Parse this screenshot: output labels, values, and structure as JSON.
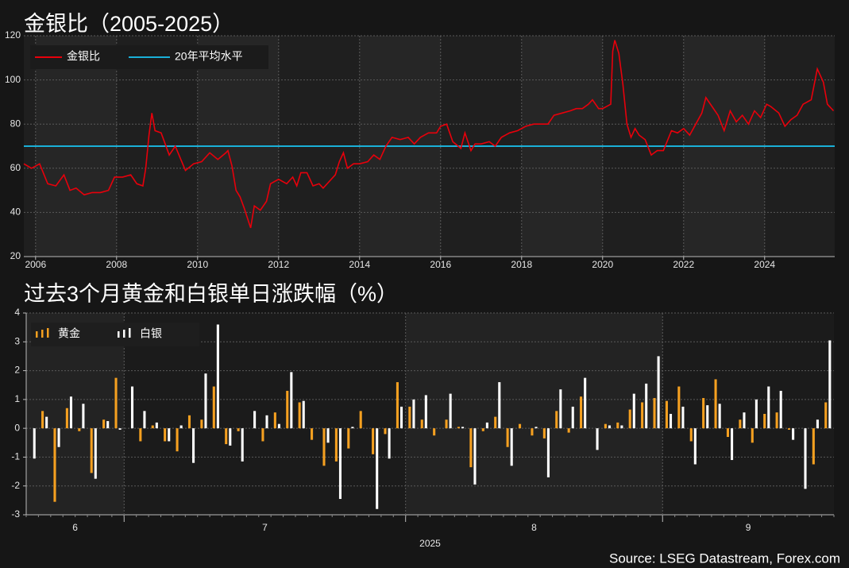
{
  "source": "Source: LSEG Datastream, Forex.com",
  "chart_data": [
    {
      "type": "line",
      "title": "金银比（2005-2025）",
      "x": [
        2005.71,
        2005.9,
        2006.1,
        2006.3,
        2006.5,
        2006.7,
        2006.85,
        2007.0,
        2007.2,
        2007.4,
        2007.6,
        2007.8,
        2007.95,
        2008.15,
        2008.35,
        2008.5,
        2008.65,
        2008.72,
        2008.8,
        2008.87,
        2008.95,
        2009.1,
        2009.3,
        2009.45,
        2009.7,
        2009.9,
        2010.1,
        2010.3,
        2010.5,
        2010.7,
        2010.75,
        2010.85,
        2010.95,
        2011.05,
        2011.15,
        2011.31,
        2011.4,
        2011.55,
        2011.7,
        2011.8,
        2012.0,
        2012.2,
        2012.35,
        2012.45,
        2012.55,
        2012.7,
        2012.85,
        2013.0,
        2013.1,
        2013.25,
        2013.4,
        2013.5,
        2013.6,
        2013.7,
        2013.85,
        2014.0,
        2014.2,
        2014.35,
        2014.5,
        2014.65,
        2014.8,
        2015.0,
        2015.2,
        2015.35,
        2015.5,
        2015.7,
        2015.9,
        2016.0,
        2016.15,
        2016.3,
        2016.5,
        2016.6,
        2016.75,
        2016.85,
        2017.0,
        2017.2,
        2017.35,
        2017.5,
        2017.7,
        2017.9,
        2018.1,
        2018.3,
        2018.5,
        2018.65,
        2018.8,
        2019.0,
        2019.2,
        2019.35,
        2019.5,
        2019.65,
        2019.75,
        2019.9,
        2020.0,
        2020.2,
        2020.25,
        2020.3,
        2020.4,
        2020.5,
        2020.6,
        2020.7,
        2020.8,
        2020.9,
        2021.05,
        2021.2,
        2021.35,
        2021.5,
        2021.7,
        2021.85,
        2022.0,
        2022.15,
        2022.3,
        2022.45,
        2022.55,
        2022.7,
        2022.85,
        2023.0,
        2023.15,
        2023.3,
        2023.45,
        2023.6,
        2023.75,
        2023.9,
        2024.05,
        2024.15,
        2024.35,
        2024.5,
        2024.65,
        2024.8,
        2024.95,
        2025.05,
        2025.15,
        2025.3,
        2025.45,
        2025.55,
        2025.7
      ],
      "series": [
        {
          "name": "金银比",
          "color": "#e8000b",
          "values": [
            62,
            60,
            62,
            53,
            52,
            57,
            50,
            51,
            48,
            49,
            49,
            50,
            56,
            56,
            57,
            53,
            52,
            60,
            75,
            85,
            77,
            76,
            66,
            70,
            59,
            62,
            63,
            67,
            64,
            67,
            68,
            61,
            50,
            47,
            42,
            33,
            43,
            41,
            45,
            53,
            55,
            53,
            56,
            52,
            58,
            58,
            52,
            53,
            51,
            54,
            57,
            63,
            67,
            60,
            62,
            62,
            63,
            66,
            64,
            70,
            74,
            73,
            74,
            71,
            74,
            76,
            76,
            79,
            80,
            72,
            69,
            76,
            68,
            71,
            71,
            72,
            70,
            74,
            76,
            77,
            79,
            80,
            80,
            80,
            84,
            85,
            86,
            87,
            87,
            89,
            91,
            87,
            87,
            89,
            113,
            118,
            112,
            98,
            80,
            74,
            78,
            75,
            73,
            66,
            68,
            68,
            77,
            76,
            78,
            75,
            80,
            85,
            92,
            88,
            84,
            77,
            86,
            81,
            84,
            80,
            86,
            83,
            89,
            88,
            85,
            79,
            82,
            84,
            89,
            90,
            91,
            105,
            99,
            89,
            86
          ]
        }
      ],
      "reference_line": {
        "name": "20年平均水平",
        "value": 70,
        "color": "#1ab0d8"
      },
      "xlim": [
        2005.71,
        2025.73
      ],
      "xticks": [
        2006,
        2008,
        2010,
        2012,
        2014,
        2016,
        2018,
        2020,
        2022,
        2024
      ],
      "ylim": [
        20,
        120
      ],
      "yticks": [
        20,
        40,
        60,
        80,
        100,
        120
      ],
      "grid": true,
      "legend": "upper left"
    },
    {
      "type": "bar",
      "title": "过去3个月黄金和白银单日涨跌幅（%）",
      "month_labels": [
        "6",
        "7",
        "8",
        "9"
      ],
      "year_label": "2025",
      "series": [
        {
          "name": "黄金",
          "color": "#f5a020",
          "values_by_month": [
            [
              0,
              0.6,
              -2.55,
              0.7,
              -0.1,
              -1.55,
              0.3,
              1.75
            ],
            [
              0,
              -0.45,
              0.1,
              -0.45,
              -0.8,
              0.45,
              0.3,
              1.45,
              -0.55,
              -0.1,
              0,
              -0.45,
              0.55,
              1.3,
              0.9,
              -0.4,
              -1.3,
              -1.15,
              -0.7,
              0.6,
              -0.9,
              -0.2,
              1.6
            ],
            [
              0.75,
              0.3,
              -0.25,
              0.3,
              0.05,
              -1.35,
              -0.1,
              0.4,
              -0.65,
              0.15,
              -0.25,
              -0.35,
              0.6,
              -0.15,
              1.1,
              0,
              0.15,
              0.2,
              0.65,
              0.9,
              1.05
            ],
            [
              0.95,
              1.45,
              -0.45,
              1.05,
              1.7,
              -0.3,
              0.3,
              -0.5,
              0.5,
              0.55,
              -0.05,
              0,
              -1.25,
              0.9
            ]
          ]
        },
        {
          "name": "白银",
          "color": "#ffffff",
          "values_by_month": [
            [
              -1.05,
              0.4,
              -0.65,
              1.1,
              0.85,
              -1.75,
              0.25,
              -0.05
            ],
            [
              1.45,
              0.6,
              0.2,
              -0.45,
              0.1,
              -1.2,
              1.9,
              3.6,
              -0.6,
              -1.15,
              0.6,
              0.45,
              0.15,
              1.95,
              0.95,
              0,
              -0.5,
              -2.45,
              0.05,
              0,
              -2.8,
              -1.05,
              0.75
            ],
            [
              1.0,
              1.15,
              0,
              1.2,
              0.05,
              -1.95,
              0.2,
              1.6,
              -1.3,
              0,
              0.05,
              -1.7,
              1.35,
              0.75,
              1.75,
              -0.75,
              0.1,
              0.1,
              1.2,
              1.55,
              2.5
            ],
            [
              0.5,
              0.75,
              -1.25,
              0.8,
              0.85,
              -1.1,
              0.55,
              1.0,
              1.45,
              1.3,
              -0.4,
              -2.1,
              0.3,
              3.05
            ]
          ]
        }
      ],
      "ylim": [
        -3,
        4
      ],
      "yticks": [
        -3,
        -2,
        -1,
        0,
        1,
        2,
        3,
        4
      ],
      "grid": true,
      "legend": "upper left"
    }
  ]
}
